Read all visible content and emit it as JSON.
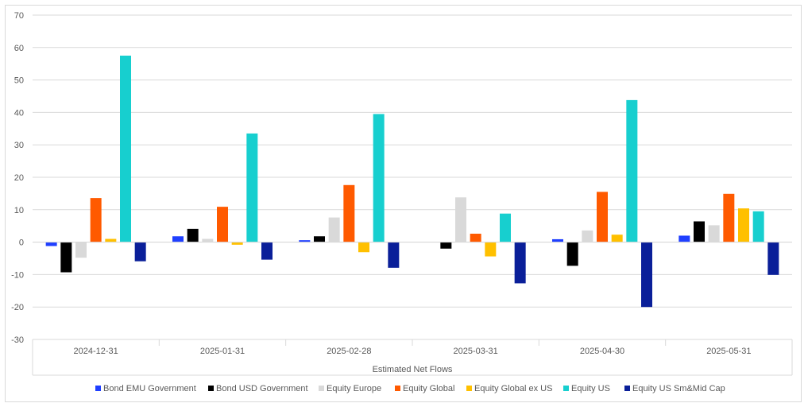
{
  "chart_data": {
    "type": "bar",
    "title": "",
    "xlabel": "Estimated Net Flows",
    "ylabel": "",
    "ylim": [
      -30,
      70
    ],
    "yticks": [
      -30,
      -20,
      -10,
      0,
      10,
      20,
      30,
      40,
      50,
      60,
      70
    ],
    "grid": "horizontal",
    "legend_position": "bottom",
    "categories": [
      "2024-12-31",
      "2025-01-31",
      "2025-02-28",
      "2025-03-31",
      "2025-04-30",
      "2025-05-31"
    ],
    "series": [
      {
        "name": "Bond EMU Government",
        "color": "#1f3fff",
        "values": [
          -1.2,
          1.8,
          0.6,
          0.0,
          0.9,
          2.0
        ]
      },
      {
        "name": "Bond USD Government",
        "color": "#000000",
        "values": [
          -9.3,
          4.1,
          1.8,
          -2.0,
          -7.3,
          6.4
        ]
      },
      {
        "name": "Equity Europe",
        "color": "#d9d9d9",
        "values": [
          -4.8,
          1.0,
          7.6,
          13.8,
          3.6,
          5.2
        ]
      },
      {
        "name": "Equity Global",
        "color": "#ff5a00",
        "values": [
          13.6,
          10.9,
          17.6,
          2.6,
          15.5,
          14.9
        ]
      },
      {
        "name": "Equity Global ex US",
        "color": "#ffc000",
        "values": [
          1.0,
          -0.8,
          -3.1,
          -4.4,
          2.3,
          10.4
        ]
      },
      {
        "name": "Equity US",
        "color": "#17cfcf",
        "values": [
          57.5,
          33.5,
          39.5,
          8.8,
          43.8,
          9.5
        ]
      },
      {
        "name": "Equity US Sm&Mid Cap",
        "color": "#0a1f99",
        "values": [
          -5.9,
          -5.4,
          -7.9,
          -12.7,
          -20.0,
          -10.1
        ]
      }
    ]
  }
}
